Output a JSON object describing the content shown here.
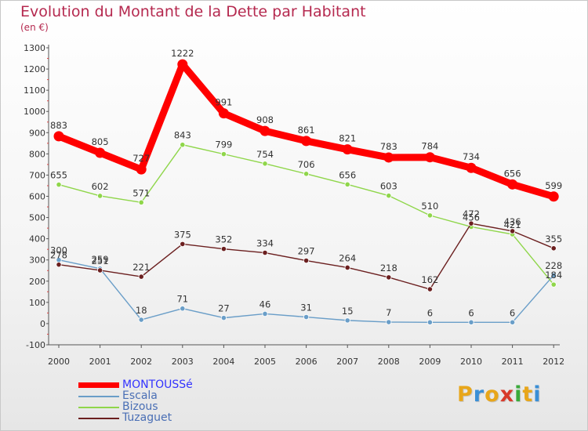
{
  "chart_data": {
    "type": "line",
    "title": "Evolution du Montant de la Dette par Habitant",
    "subtitle": "(en €)",
    "xlabel": "",
    "ylabel": "",
    "ylim": [
      -100,
      1300
    ],
    "ytick_step": 100,
    "grid": false,
    "x": [
      "2000",
      "2001",
      "2002",
      "2003",
      "2004",
      "2005",
      "2006",
      "2007",
      "2008",
      "2009",
      "2010",
      "2011",
      "2012"
    ],
    "series": [
      {
        "name": "MONTOUSSé",
        "color": "#ff0000",
        "bold": true,
        "values": [
          883,
          805,
          727,
          1222,
          991,
          908,
          861,
          821,
          783,
          784,
          734,
          656,
          599
        ],
        "labels": [
          "883",
          "805",
          "727",
          "1222",
          "991",
          "908",
          "861",
          "821",
          "783",
          "784",
          "734",
          "656",
          "599"
        ]
      },
      {
        "name": "Escala",
        "color": "#6a9ec8",
        "bold": false,
        "values": [
          300,
          259,
          18,
          71,
          27,
          46,
          31,
          15,
          7,
          6,
          6,
          6,
          228
        ],
        "labels": [
          "300",
          "259",
          "18",
          "71",
          "27",
          "46",
          "31",
          "15",
          "7",
          "6",
          "6",
          "6",
          "228"
        ]
      },
      {
        "name": "Bizous",
        "color": "#8fd64a",
        "bold": false,
        "values": [
          655,
          602,
          571,
          843,
          799,
          754,
          706,
          656,
          603,
          510,
          456,
          421,
          184
        ],
        "labels": [
          "655",
          "602",
          "571",
          "843",
          "799",
          "754",
          "706",
          "656",
          "603",
          "510",
          "456",
          "421",
          "184"
        ]
      },
      {
        "name": "Tuzaguet",
        "color": "#6b1f1f",
        "bold": false,
        "values": [
          278,
          251,
          221,
          375,
          352,
          334,
          297,
          264,
          218,
          162,
          472,
          436,
          355
        ],
        "labels": [
          "278",
          "251",
          "221",
          "375",
          "352",
          "334",
          "297",
          "264",
          "218",
          "162",
          "472",
          "436",
          "355"
        ]
      }
    ],
    "legend_position": "bottom-left"
  },
  "brand": {
    "letters": [
      "P",
      "r",
      "o",
      "x",
      "i",
      "t",
      "i"
    ],
    "colors": [
      "#e8a61a",
      "#3a8fd6",
      "#e8a61a",
      "#d83a2a",
      "#3aaa3a",
      "#e8a61a",
      "#3a8fd6"
    ]
  }
}
